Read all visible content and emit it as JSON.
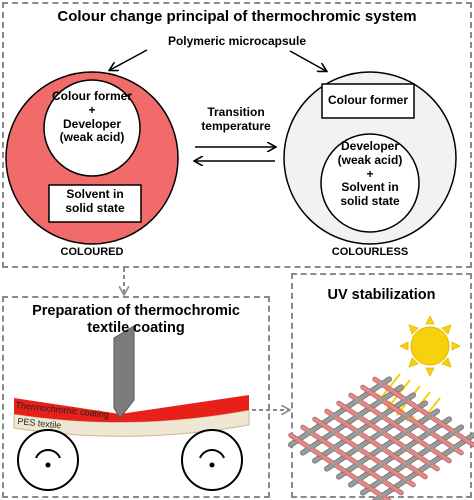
{
  "top_panel": {
    "title": "Colour change principal of thermochromic system",
    "microcapsule_label": "Polymeric microcapsule",
    "transition_label_line1": "Transition",
    "transition_label_line2": "temperature",
    "coloured": {
      "inner_line1": "Colour former",
      "inner_plus": "+",
      "inner_line2": "Developer",
      "inner_line3": "(weak acid)",
      "solvent_line1": "Solvent in",
      "solvent_line2": "solid state",
      "state_label": "COLOURED"
    },
    "colourless": {
      "colour_former_box": "Colour former",
      "inner_line1": "Developer",
      "inner_line2": "(weak acid)",
      "inner_plus": "+",
      "inner_line3": "Solvent in",
      "inner_line4": "solid state",
      "state_label": "COLOURLESS"
    }
  },
  "bottom_left_panel": {
    "title_line1": "Preparation of thermochromic",
    "title_line2": "textile coating",
    "coating_label": "Thermochromic coating",
    "textile_label": "PES textile"
  },
  "bottom_right_panel": {
    "title": "UV stabilization"
  },
  "colors": {
    "coloured_capsule": "#f26b6b",
    "coating_red": "#e8201a",
    "sun_yellow": "#f5d20a",
    "mesh_red": "#e08a8a",
    "mesh_grey": "#9a9a9a"
  }
}
